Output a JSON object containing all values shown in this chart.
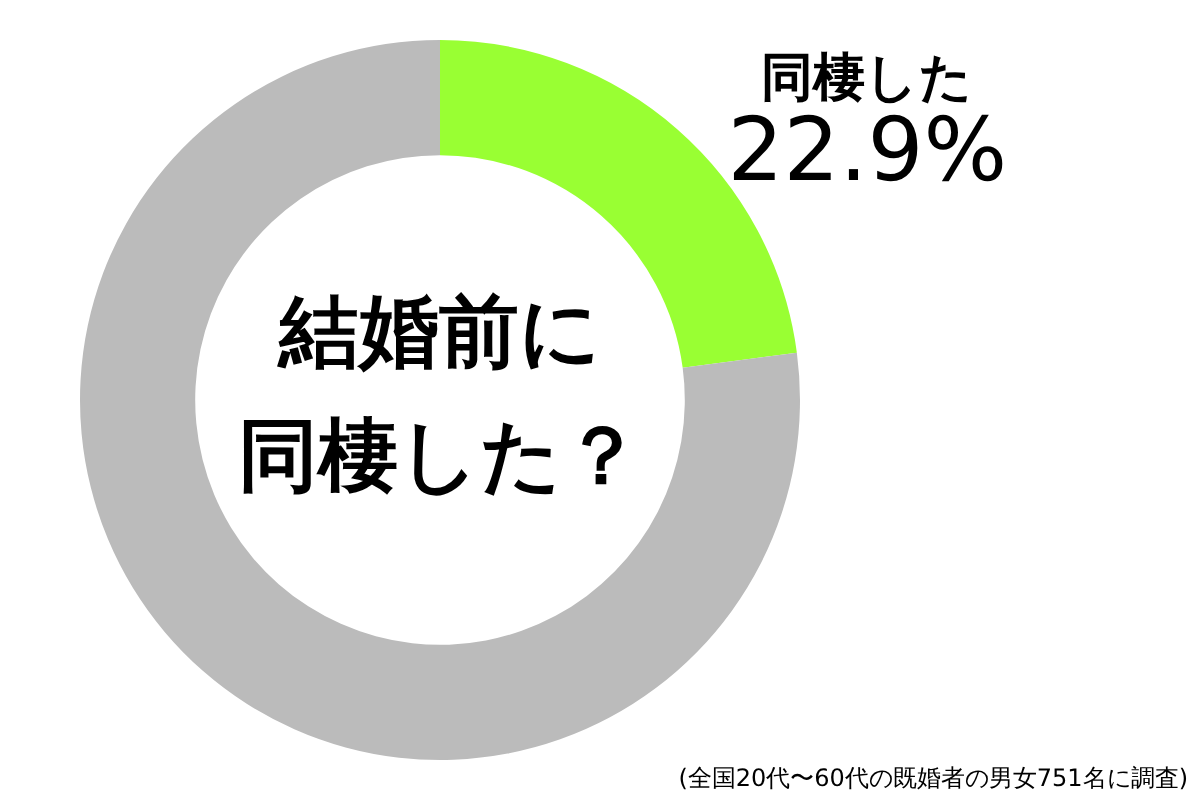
{
  "chart_data": {
    "type": "donut",
    "title": "結婚前に同棲した？",
    "categories": [
      "同棲した",
      null
    ],
    "values": [
      22.9,
      77.1
    ],
    "colors": [
      "#99ff33",
      "#bbbbbb"
    ],
    "value_labels": [
      "22.9%",
      null
    ],
    "legend": false,
    "annotations": [
      "(全国20代〜60代の既婚者の男女751名に調査)"
    ]
  }
}
